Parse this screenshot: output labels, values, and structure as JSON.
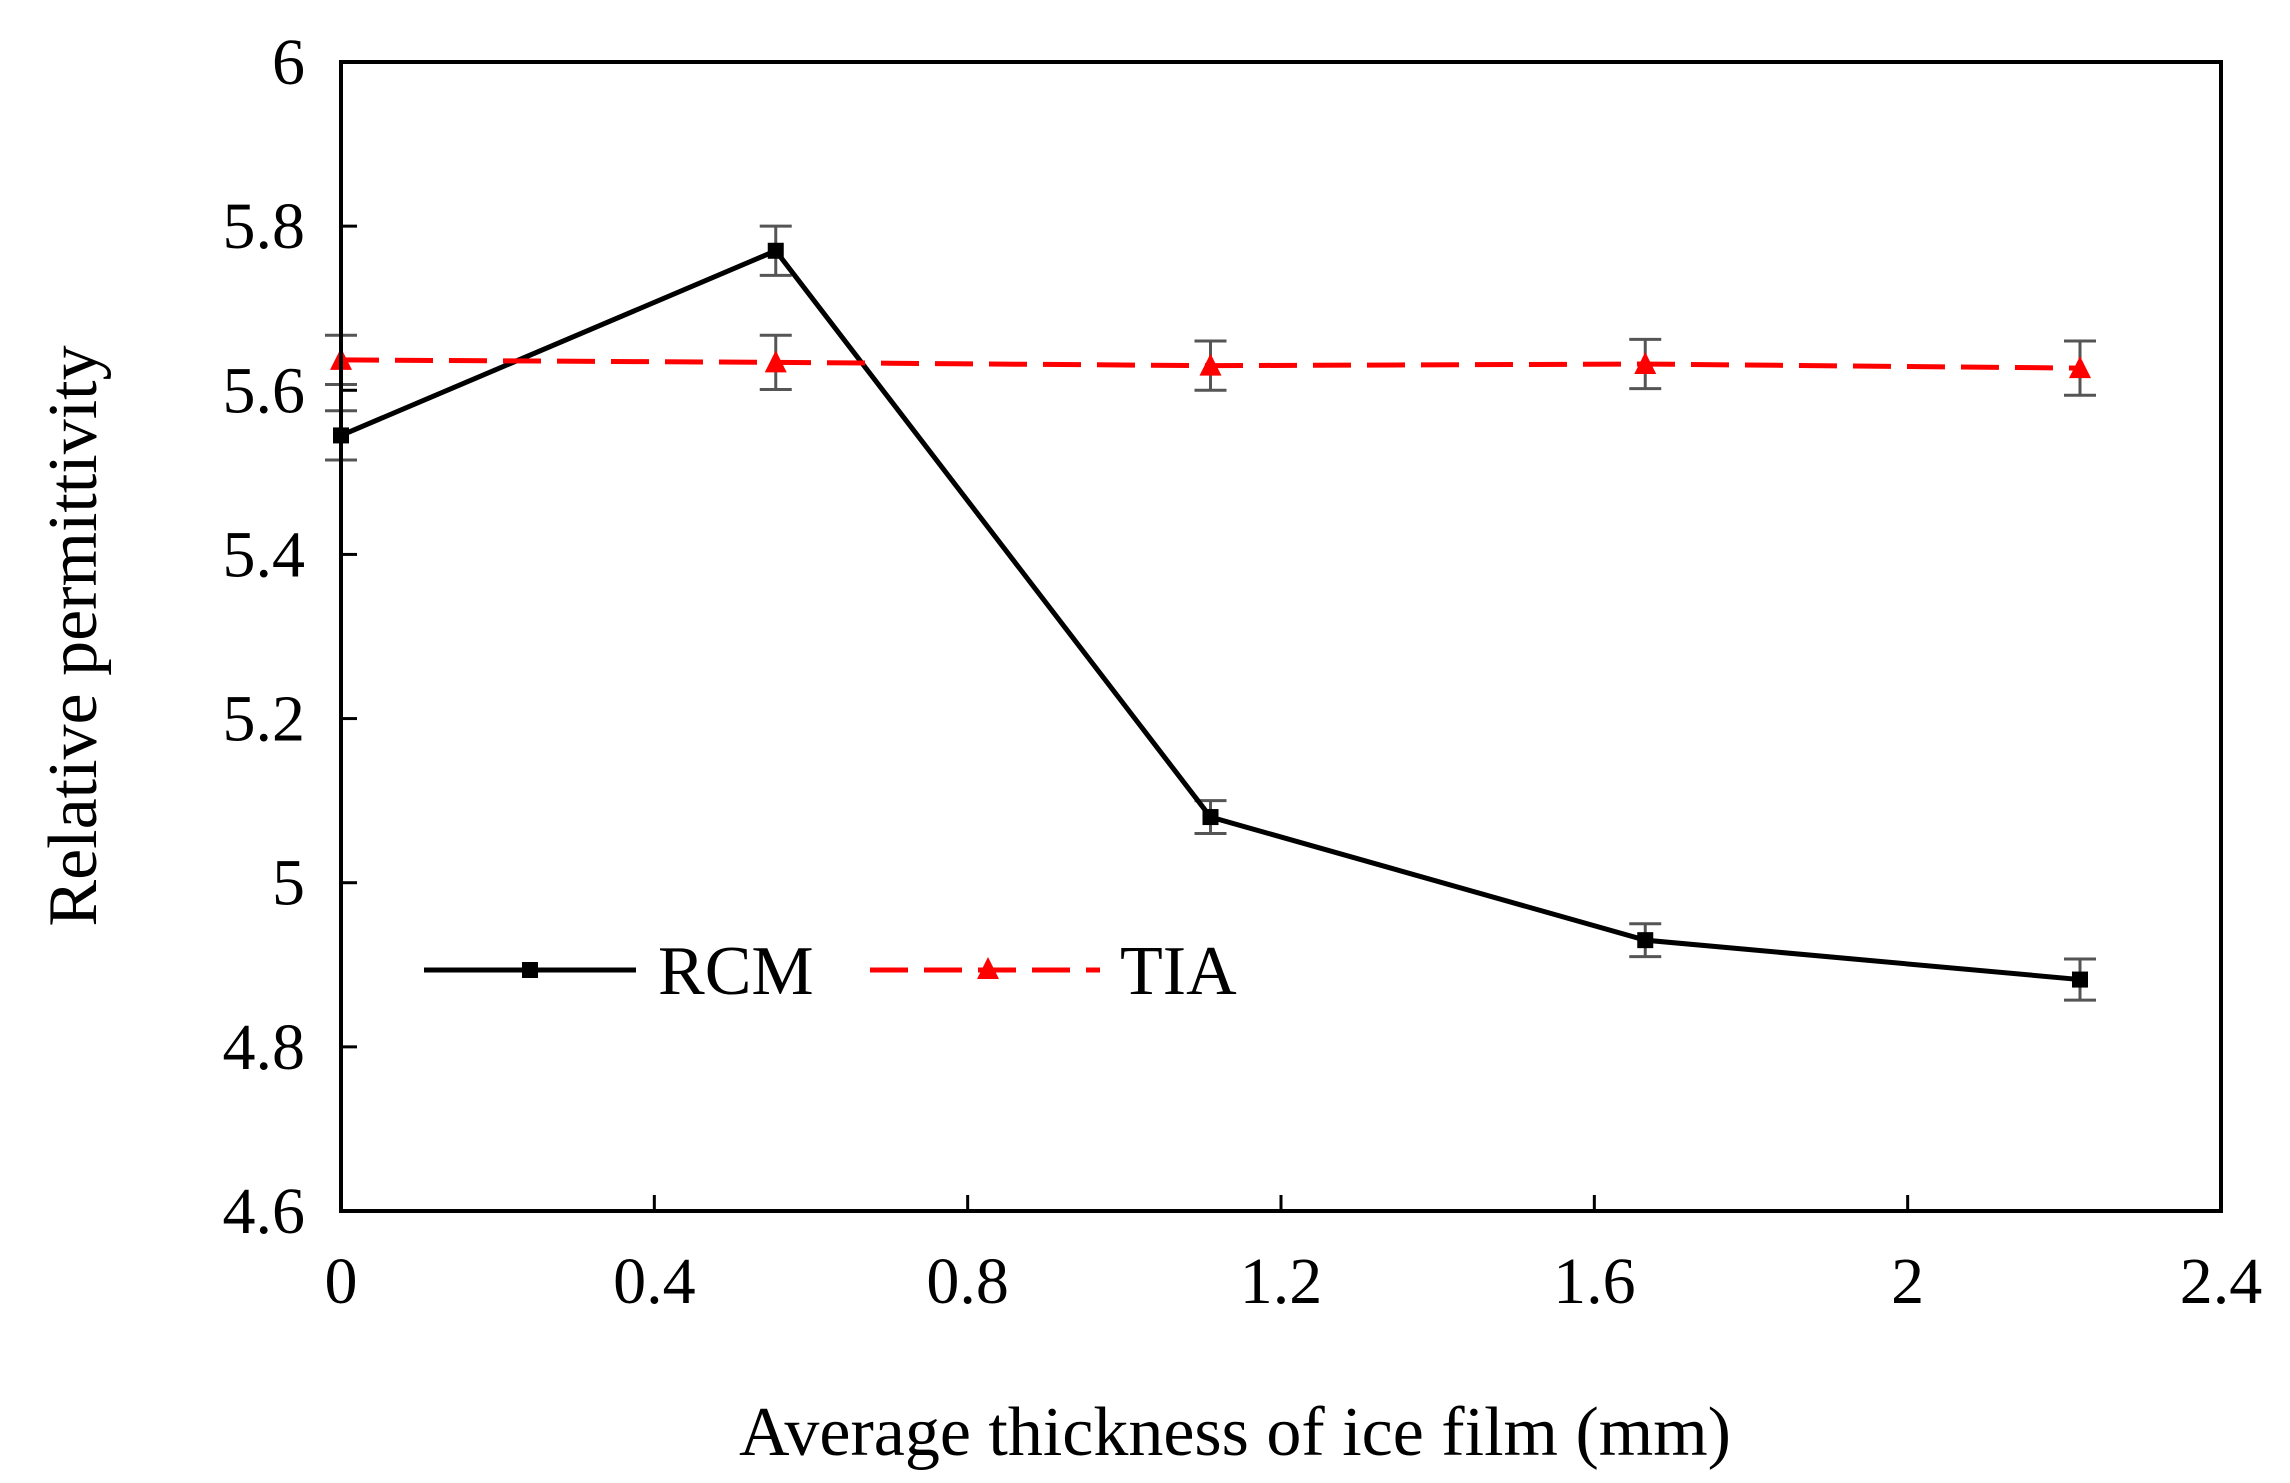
{
  "chart_data": {
    "type": "line",
    "title": "",
    "xlabel": "Average thickness of ice film (mm)",
    "ylabel": "Relative permittivity",
    "xlim": [
      0,
      2.4
    ],
    "ylim": [
      4.6,
      6
    ],
    "xticks": [
      0,
      0.4,
      0.8,
      1.2,
      1.6,
      2,
      2.4
    ],
    "xtick_labels": [
      "0",
      "0.4",
      "0.8",
      "1.2",
      "1.6",
      "2",
      "2.4"
    ],
    "yticks": [
      4.6,
      4.8,
      5,
      5.2,
      5.4,
      5.6,
      5.8,
      6
    ],
    "ytick_labels": [
      "4.6",
      "4.8",
      "5",
      "5.2",
      "5.4",
      "5.6",
      "5.8",
      "6"
    ],
    "grid": false,
    "legend_position": "lower-left",
    "series": [
      {
        "name": "RCM",
        "color": "#000000",
        "line_style": "solid",
        "marker": "square",
        "x": [
          0,
          0.555,
          1.11,
          1.665,
          2.22
        ],
        "y": [
          5.545,
          5.77,
          5.08,
          4.93,
          4.882
        ],
        "error": [
          0.03,
          0.03,
          0.02,
          0.02,
          0.025
        ]
      },
      {
        "name": "TIA",
        "color": "#ff0000",
        "line_style": "dashed",
        "marker": "triangle",
        "x": [
          0,
          0.555,
          1.11,
          1.665,
          2.22
        ],
        "y": [
          5.637,
          5.634,
          5.63,
          5.632,
          5.627
        ],
        "error": [
          0.03,
          0.033,
          0.03,
          0.03,
          0.033
        ]
      }
    ]
  }
}
